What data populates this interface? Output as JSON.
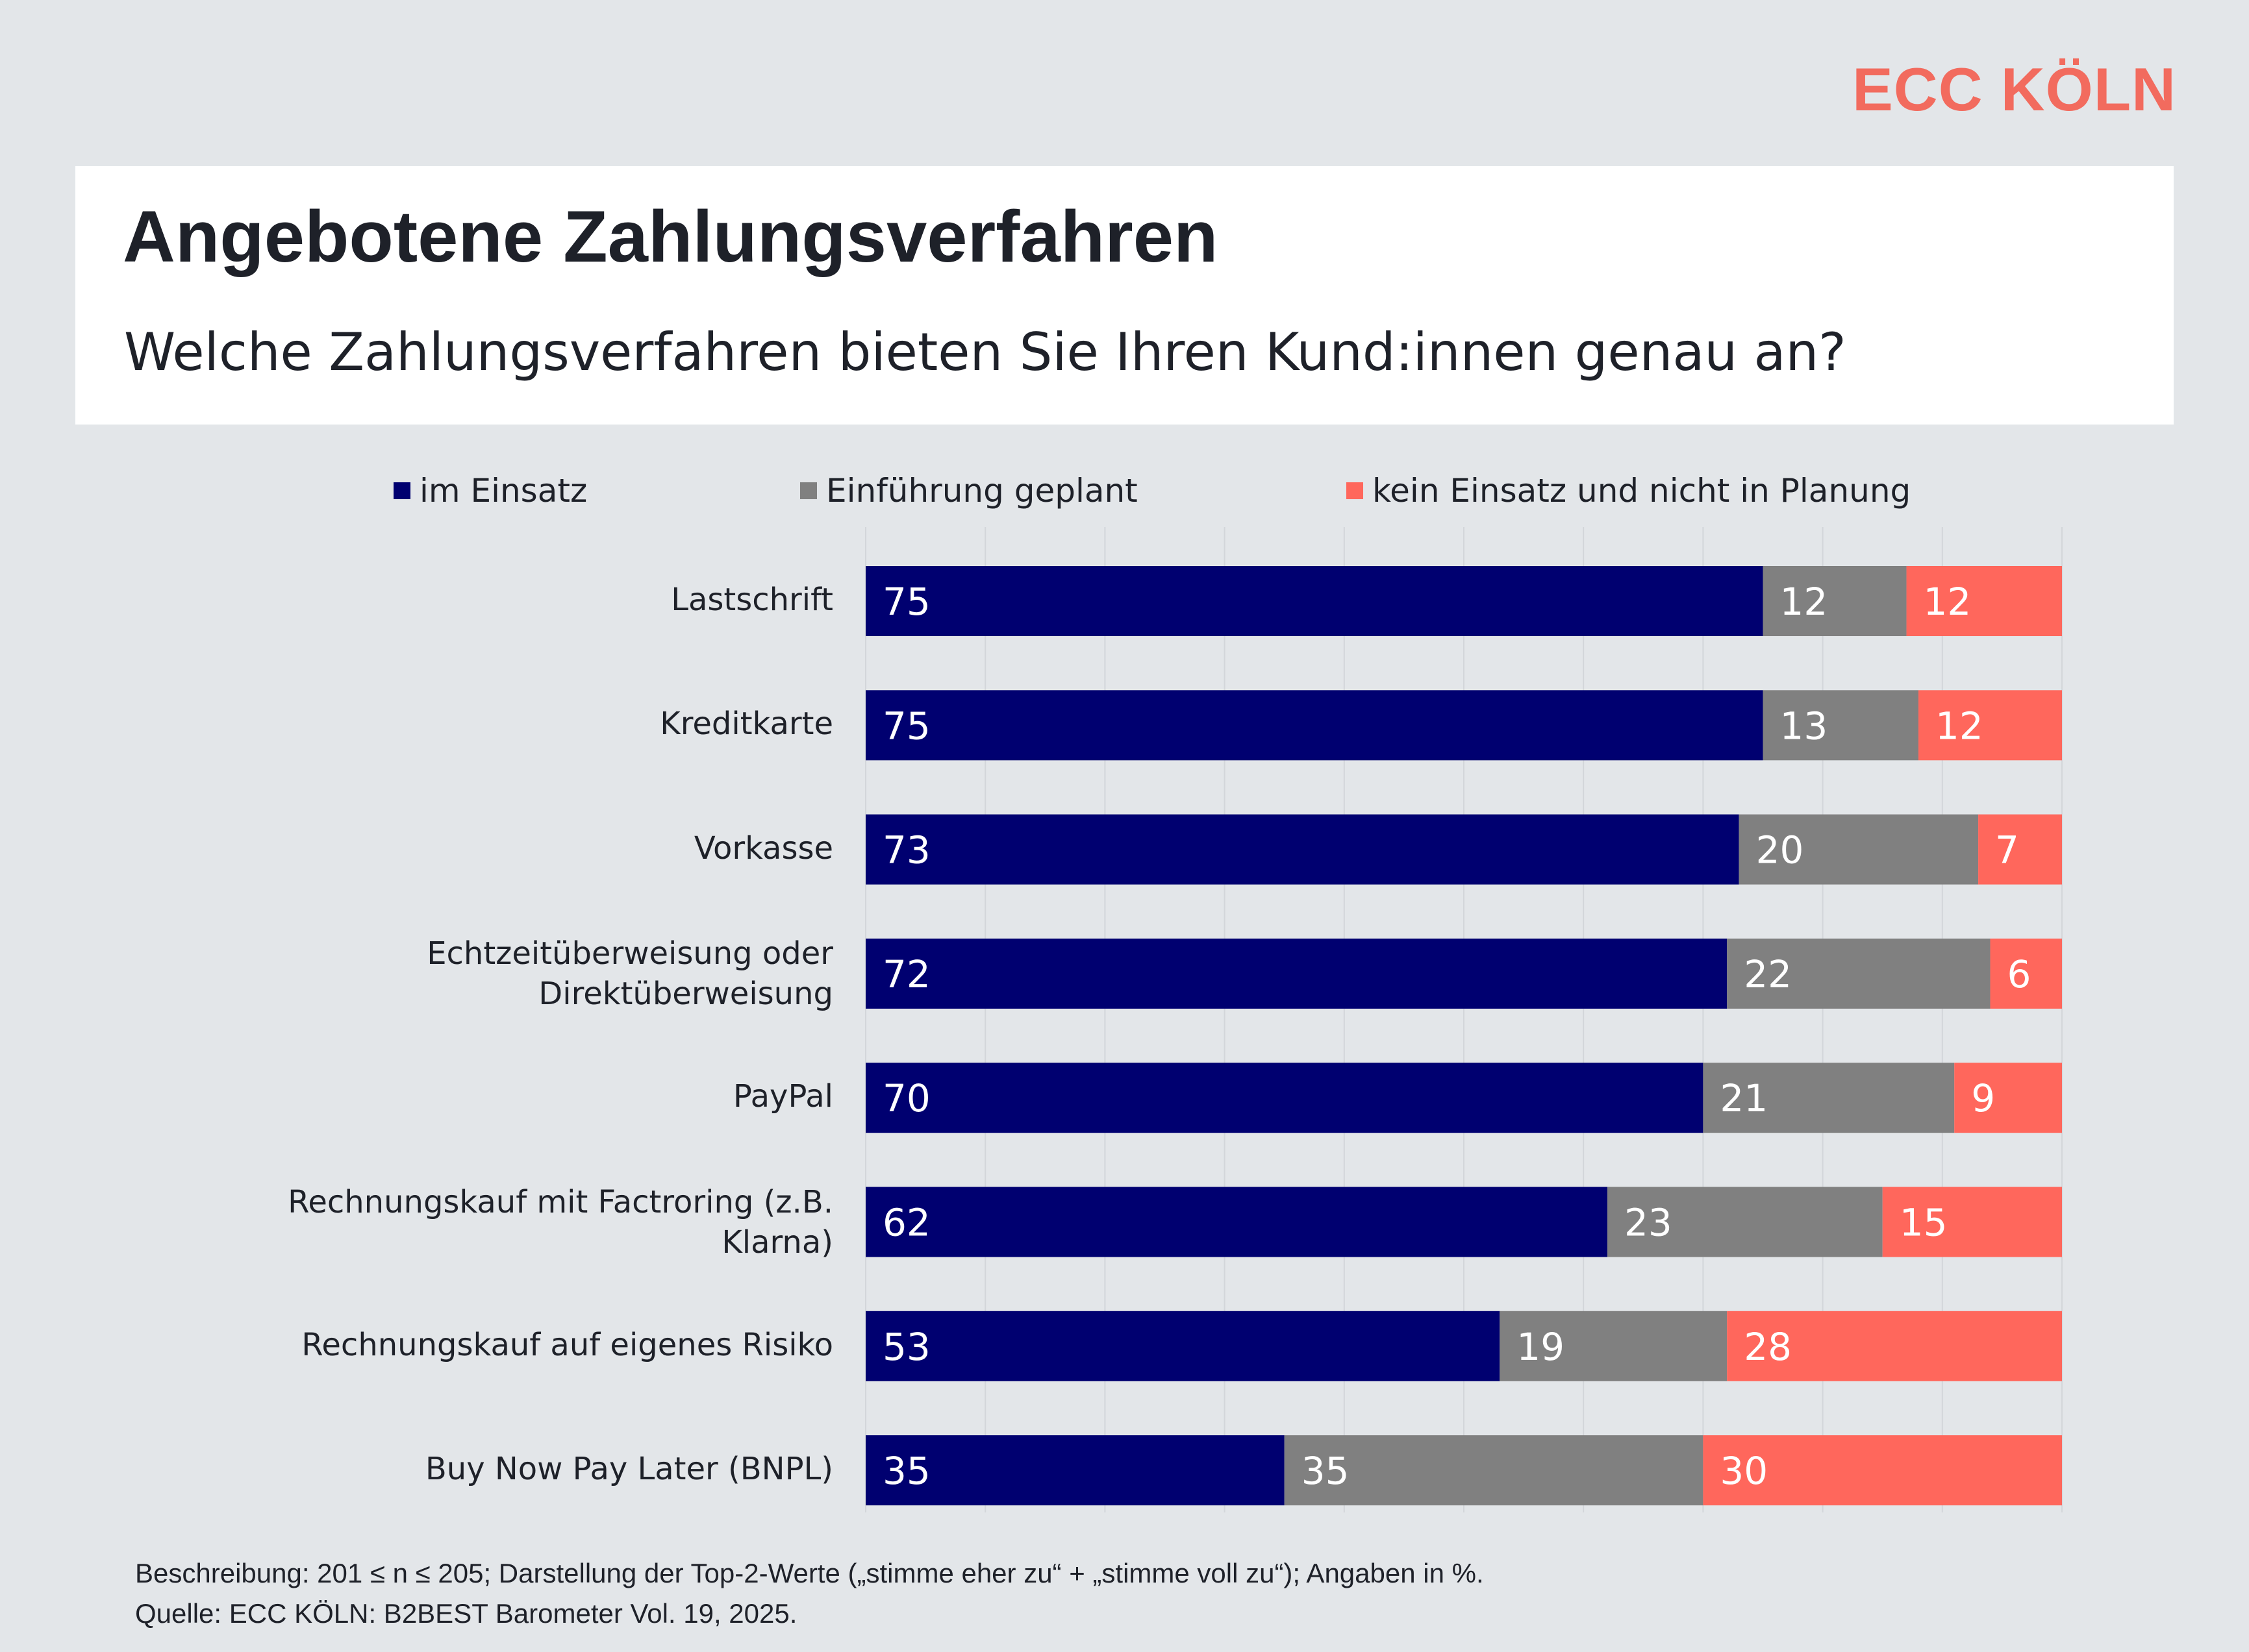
{
  "brand": {
    "logo_text": "ECC KÖLN"
  },
  "header": {
    "title": "Angebotene Zahlungsverfahren",
    "subtitle": "Welche Zahlungsverfahren bieten Sie Ihren Kund:innen genau an?"
  },
  "footer": {
    "description": "Beschreibung: 201 ≤ n ≤ 205; Darstellung der Top-2-Werte („stimme eher zu“ + „stimme voll zu“); Angaben in %.",
    "source": "Quelle: ECC KÖLN: B2BEST Barometer Vol. 19, 2025."
  },
  "colors": {
    "im_einsatz": "#000070",
    "geplant": "#808080",
    "kein_einsatz": "#ff675c",
    "brand": "#f26b5e"
  },
  "chart_data": {
    "type": "bar",
    "orientation": "horizontal",
    "stacked": true,
    "legend_position": "top",
    "xlim": [
      0,
      100
    ],
    "categories": [
      "Lastschrift",
      "Kreditkarte",
      "Vorkasse",
      "Echtzeitüberweisung oder Direktüberweisung",
      "PayPal",
      "Rechnungskauf mit Factroring (z.B. Klarna)",
      "Rechnungskauf auf eigenes Risiko",
      "Buy Now Pay Later (BNPL)"
    ],
    "category_lines": [
      [
        "Lastschrift"
      ],
      [
        "Kreditkarte"
      ],
      [
        "Vorkasse"
      ],
      [
        "Echtzeitüberweisung oder",
        "Direktüberweisung"
      ],
      [
        "PayPal"
      ],
      [
        "Rechnungskauf mit Factroring (z.B.",
        "Klarna)"
      ],
      [
        "Rechnungskauf auf eigenes Risiko"
      ],
      [
        "Buy Now Pay Later (BNPL)"
      ]
    ],
    "series": [
      {
        "name": "im Einsatz",
        "color": "#000070",
        "values": [
          75,
          75,
          73,
          72,
          70,
          62,
          53,
          35
        ]
      },
      {
        "name": "Einführung geplant",
        "color": "#808080",
        "values": [
          12,
          13,
          20,
          22,
          21,
          23,
          19,
          35
        ]
      },
      {
        "name": "kein Einsatz und nicht in Planung",
        "color": "#ff675c",
        "values": [
          12,
          12,
          7,
          6,
          9,
          15,
          28,
          30
        ]
      }
    ]
  }
}
